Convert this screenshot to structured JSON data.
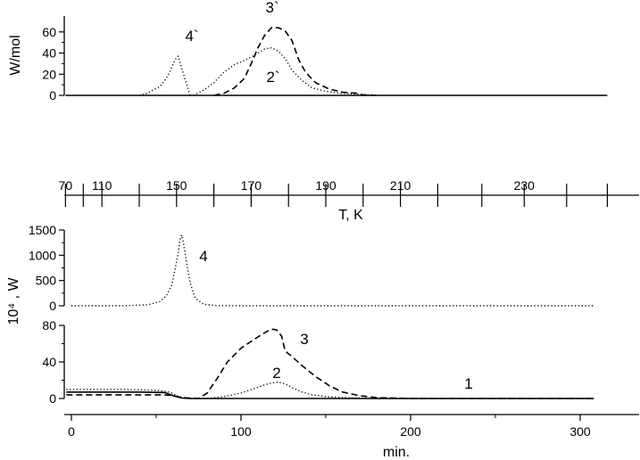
{
  "chart_data": [
    {
      "id": "top",
      "type": "line",
      "ylabel": "W/mol",
      "ylim": [
        0,
        75
      ],
      "yticks": [
        0,
        20,
        40,
        60
      ],
      "x_unit": "min",
      "xlim": [
        -3.5,
        316
      ],
      "series": [
        {
          "label": "4`",
          "style": "dotted",
          "x": [
            40,
            45,
            48,
            52,
            55,
            58,
            60,
            62,
            63,
            65,
            68,
            70
          ],
          "y": [
            0,
            2,
            5,
            8,
            14,
            22,
            30,
            36,
            37,
            26,
            10,
            0
          ]
        },
        {
          "label": "2`",
          "style": "dotted",
          "x": [
            72,
            78,
            84,
            90,
            96,
            102,
            108,
            114,
            118,
            122,
            126,
            130,
            136,
            142,
            150,
            158,
            170,
            180
          ],
          "y": [
            0,
            5,
            12,
            22,
            29,
            33,
            38,
            44,
            45,
            42,
            35,
            24,
            14,
            7,
            4,
            2,
            1,
            0
          ]
        },
        {
          "label": "3`",
          "style": "dashed",
          "x": [
            84,
            90,
            96,
            102,
            106,
            110,
            114,
            118,
            122,
            126,
            130,
            134,
            138,
            144,
            152,
            160,
            168,
            172,
            180
          ],
          "y": [
            0,
            2,
            7,
            16,
            30,
            45,
            57,
            64,
            64,
            61,
            52,
            34,
            22,
            12,
            6,
            3,
            2,
            0.5,
            0
          ]
        },
        {
          "label": "",
          "style": "solid",
          "x": [
            -3.5,
            316
          ],
          "y": [
            0,
            0
          ]
        }
      ]
    },
    {
      "id": "temperature-axis",
      "type": "axis",
      "xlabel": "T, K",
      "tick_labels": [
        "70",
        "110",
        "150",
        "170",
        "190",
        "210",
        "230"
      ],
      "tick_values_min": [
        -3.5,
        18,
        62,
        106,
        150,
        194,
        267
      ],
      "minor_ticks_min": [
        7,
        40,
        84,
        128,
        172,
        216,
        242,
        292,
        316
      ]
    },
    {
      "id": "bottom-upper",
      "type": "line",
      "ylabel": "10⁴ , W",
      "ylim": [
        0,
        1500
      ],
      "yticks": [
        0,
        500,
        1000,
        1500
      ],
      "xlim": [
        -3.5,
        316
      ],
      "series": [
        {
          "label": "4",
          "style": "dotted",
          "x": [
            0,
            30,
            45,
            52,
            56,
            59,
            61,
            63,
            64,
            65,
            66,
            68,
            70,
            73,
            78,
            85,
            100,
            140,
            200,
            240,
            280,
            308
          ],
          "y": [
            0,
            0,
            20,
            80,
            200,
            400,
            700,
            1050,
            1300,
            1400,
            1250,
            850,
            450,
            150,
            30,
            5,
            0,
            0,
            0,
            0,
            0,
            0
          ]
        }
      ]
    },
    {
      "id": "bottom-lower",
      "type": "line",
      "xlabel": "min.",
      "xticks": [
        0,
        100,
        200,
        300
      ],
      "xlim": [
        -3.5,
        316
      ],
      "ylim": [
        0,
        80
      ],
      "yticks": [
        0,
        40,
        80
      ],
      "series": [
        {
          "label": "1",
          "style": "solid",
          "x": [
            -3,
            0,
            20,
            40,
            55,
            60,
            65,
            70,
            100,
            150,
            200,
            250,
            308
          ],
          "y": [
            7,
            7,
            7,
            7,
            6.5,
            3,
            0.5,
            0,
            0,
            0,
            0,
            0,
            0
          ]
        },
        {
          "label": "2",
          "style": "dotted",
          "x": [
            -3,
            0,
            30,
            50,
            58,
            62,
            66,
            70,
            80,
            90,
            100,
            108,
            114,
            118,
            122,
            126,
            130,
            136,
            142,
            150,
            160,
            180,
            220,
            308
          ],
          "y": [
            10,
            10,
            10,
            9,
            7,
            3,
            1,
            0,
            0,
            2,
            6,
            11,
            15,
            17,
            18,
            16,
            12,
            7,
            4,
            2,
            1,
            0,
            0,
            0
          ]
        },
        {
          "label": "3",
          "style": "dashed",
          "x": [
            -3,
            0,
            30,
            55,
            60,
            65,
            75,
            80,
            86,
            92,
            100,
            108,
            114,
            118,
            121,
            124,
            126,
            130,
            136,
            144,
            152,
            160,
            170,
            180,
            200,
            220,
            308
          ],
          "y": [
            4,
            4,
            4,
            4,
            3,
            1,
            0,
            6,
            22,
            40,
            55,
            65,
            72,
            76,
            75,
            68,
            52,
            46,
            36,
            24,
            14,
            7,
            3,
            1,
            0,
            0,
            0
          ]
        }
      ]
    }
  ]
}
